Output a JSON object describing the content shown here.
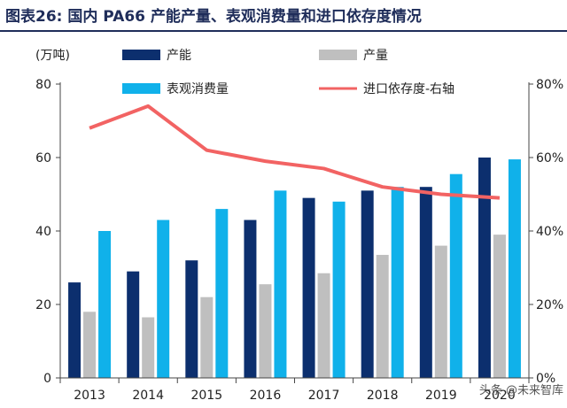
{
  "header": {
    "title": "图表26:   国内 PA66 产能产量、表观消费量和进口依存度情况",
    "unit": "(万吨)"
  },
  "watermark": "头条 @未来智库",
  "colors": {
    "capacity": "#0c2f6e",
    "output": "#bfbfbf",
    "consumption": "#10b1ea",
    "dependency": "#f26363"
  },
  "chart_data": {
    "type": "bar",
    "categories": [
      "2013",
      "2014",
      "2015",
      "2016",
      "2017",
      "2018",
      "2019",
      "2020"
    ],
    "series": [
      {
        "name": "产能",
        "type": "bar",
        "axis": "left",
        "values": [
          26,
          29,
          32,
          43,
          49,
          51,
          52,
          60
        ]
      },
      {
        "name": "产量",
        "type": "bar",
        "axis": "left",
        "values": [
          18,
          16.5,
          22,
          25.5,
          28.5,
          33.5,
          36,
          39
        ]
      },
      {
        "name": "表观消费量",
        "type": "bar",
        "axis": "left",
        "values": [
          40,
          43,
          46,
          51,
          48,
          52,
          55.5,
          59.5
        ]
      },
      {
        "name": "进口依存度-右轴",
        "type": "line",
        "axis": "right",
        "values": [
          68,
          74,
          62,
          59,
          57,
          52,
          50,
          49
        ]
      }
    ],
    "ylim": [
      0,
      80
    ],
    "yticks": [
      "0",
      "20",
      "40",
      "60",
      "80"
    ],
    "y2lim": [
      0,
      80
    ],
    "y2ticks": [
      "0%",
      "20%",
      "40%",
      "60%",
      "80%"
    ],
    "legend_position": "top",
    "grid": false
  }
}
